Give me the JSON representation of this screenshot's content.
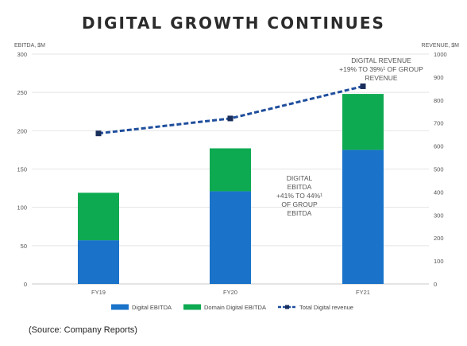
{
  "header": {
    "title": "DIGITAL GROWTH CONTINUES"
  },
  "footer": {
    "source": "(Source: Company Reports)"
  },
  "chart_data": {
    "type": "bar",
    "title": "DIGITAL GROWTH CONTINUES",
    "categories": [
      "FY19",
      "FY20",
      "FY21"
    ],
    "ylabel": "EBITDA, $M",
    "y2label": "REVENUE, $M",
    "ylim": [
      0,
      300
    ],
    "y2lim": [
      0,
      1000
    ],
    "yticks": [
      0,
      50,
      100,
      150,
      200,
      250,
      300
    ],
    "y2ticks": [
      0,
      100,
      200,
      300,
      400,
      500,
      600,
      700,
      800,
      900,
      1000
    ],
    "stacked": true,
    "series": [
      {
        "name": "Digital EBITDA",
        "type": "bar",
        "axis": "left",
        "color": "#1a73c9",
        "values": [
          57,
          121,
          175
        ]
      },
      {
        "name": "Domain Digital EBITDA",
        "type": "bar",
        "axis": "left",
        "color": "#0eaa52",
        "values": [
          62,
          56,
          73
        ]
      },
      {
        "name": "Total Digital revenue",
        "type": "line",
        "axis": "right",
        "style": "dashed",
        "color": "#1f4e9c",
        "values": [
          655,
          720,
          860
        ]
      }
    ],
    "annotations": [
      {
        "lines": [
          "DIGITAL",
          "EBITDA",
          "+41% TO 44%¹",
          "OF GROUP",
          "EBITDA"
        ]
      },
      {
        "lines": [
          "DIGITAL REVENUE",
          "+19% TO 39%¹ OF GROUP",
          "REVENUE"
        ]
      }
    ],
    "grid": true,
    "legend": "bottom"
  }
}
